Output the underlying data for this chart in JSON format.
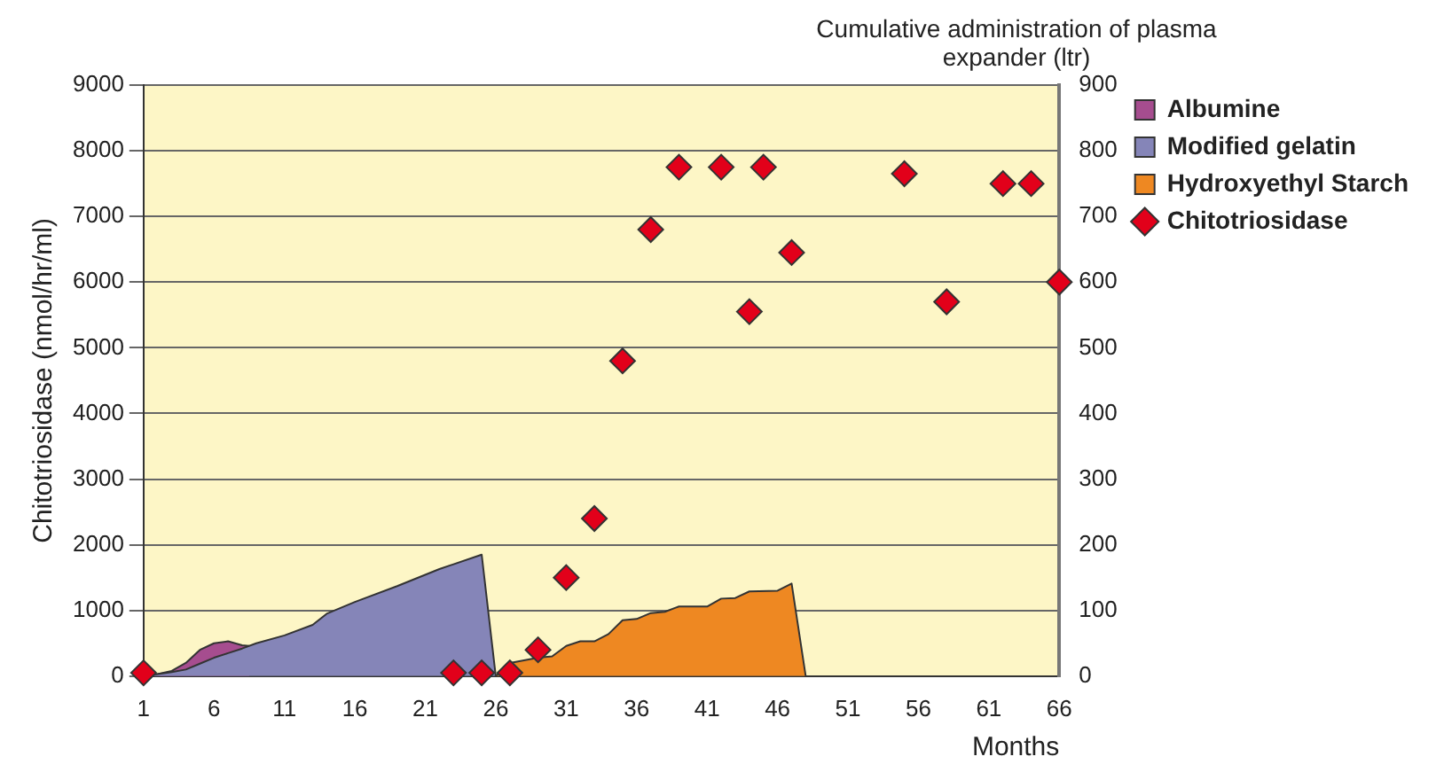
{
  "chart_data": {
    "type": "area",
    "xlabel": "Months",
    "ylabel": "Chitotriosidase (nmol/hr/ml)",
    "y2label": "Cumulative administration of plasma expander (ltr)",
    "xlim": [
      1,
      66
    ],
    "xticks": [
      1,
      6,
      11,
      16,
      21,
      26,
      31,
      36,
      41,
      46,
      51,
      56,
      61,
      66
    ],
    "ylim": [
      0,
      9000
    ],
    "yticks": [
      0,
      1000,
      2000,
      3000,
      4000,
      5000,
      6000,
      7000,
      8000,
      9000
    ],
    "y2lim": [
      0,
      900
    ],
    "y2ticks": [
      0,
      100,
      200,
      300,
      400,
      500,
      600,
      700,
      800,
      900
    ],
    "grid": "y",
    "legend": "right",
    "series": [
      {
        "name": "Albumine",
        "axis": "y2",
        "color": "#a64d8f",
        "x": [
          1,
          2,
          3,
          4,
          5,
          6,
          7,
          8,
          8.5
        ],
        "values": [
          0,
          3,
          8,
          20,
          40,
          50,
          53,
          47,
          46
        ]
      },
      {
        "name": "Modified gelatin",
        "axis": "y2",
        "color": "#8585b8",
        "x": [
          1,
          2,
          3,
          4,
          5,
          6,
          7,
          8,
          9,
          11,
          13,
          14,
          16,
          19,
          22,
          25,
          26
        ],
        "values": [
          0,
          3,
          6,
          10,
          19,
          28,
          35,
          42,
          50,
          62,
          78,
          95,
          113,
          137,
          163,
          185,
          0
        ]
      },
      {
        "name": "Hydroxyethyl Starch",
        "axis": "y2",
        "color": "#ee8822",
        "x": [
          26,
          27,
          29,
          30,
          31,
          32,
          33,
          34,
          35,
          36,
          37,
          38,
          39,
          41,
          42,
          43,
          44,
          46,
          47,
          48
        ],
        "values": [
          0,
          20,
          28,
          30,
          46,
          53,
          53,
          64,
          85,
          87,
          96,
          98,
          106,
          106,
          118,
          119,
          129,
          130,
          141,
          0
        ]
      },
      {
        "name": "Chitotriosidase",
        "type": "scatter",
        "marker": "diamond",
        "color": "#e2001a",
        "x": [
          1,
          23,
          25,
          27,
          29,
          31,
          33,
          35,
          37,
          39,
          42,
          44,
          45,
          47,
          55,
          58,
          62,
          64,
          66
        ],
        "values": [
          50,
          50,
          50,
          50,
          400,
          1500,
          2400,
          4800,
          6800,
          7750,
          7750,
          5550,
          7750,
          6450,
          7650,
          5700,
          7500,
          7500,
          6000
        ]
      }
    ]
  }
}
